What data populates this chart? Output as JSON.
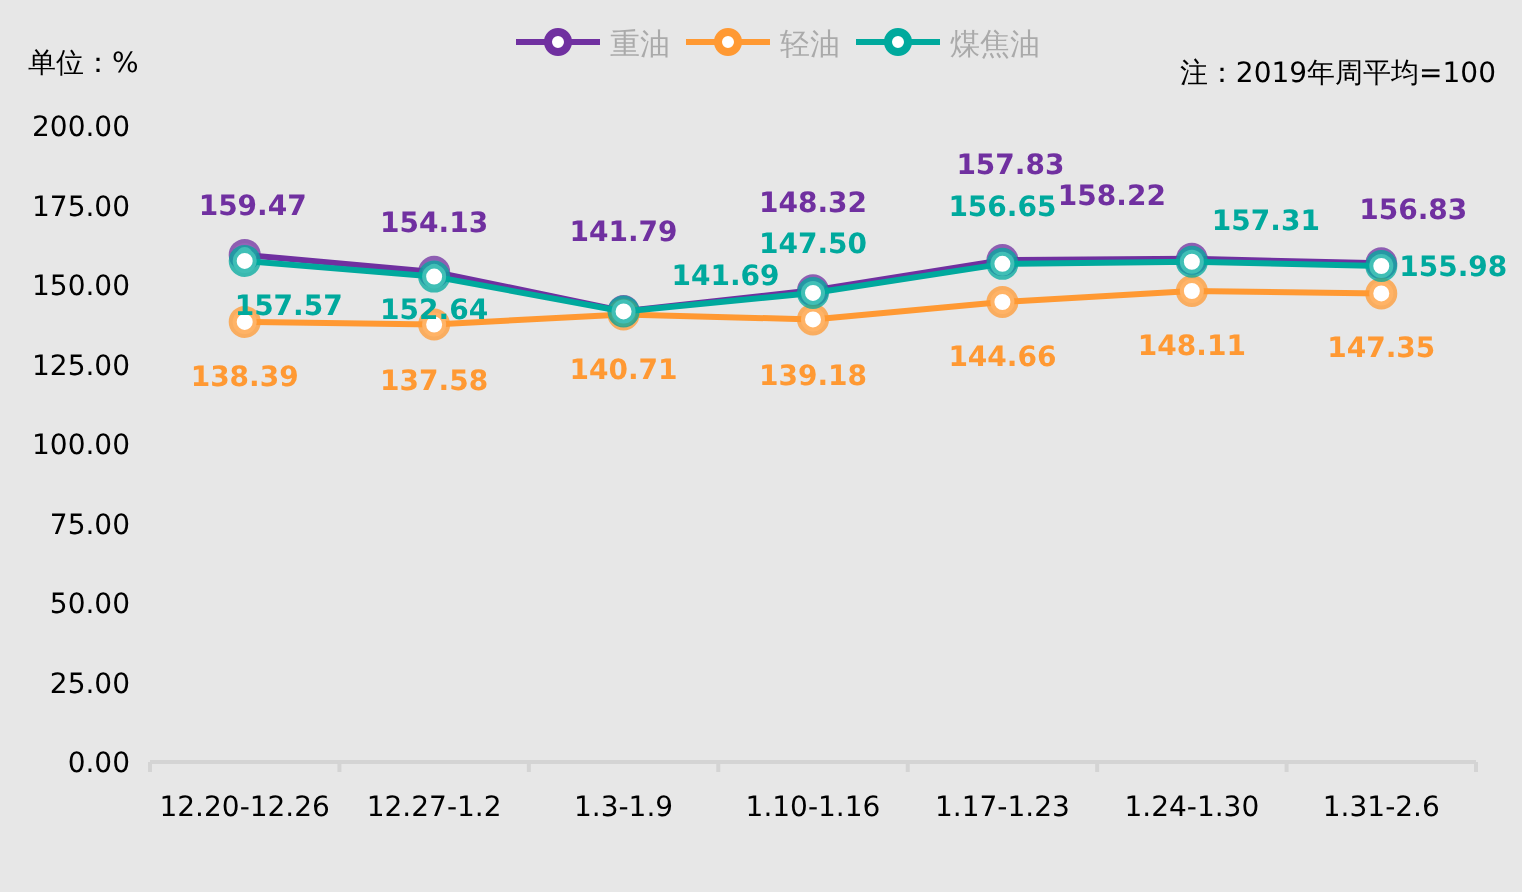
{
  "chart_data": {
    "type": "line",
    "categories": [
      "12.20-12.26",
      "12.27-1.2",
      "1.3-1.9",
      "1.10-1.16",
      "1.17-1.23",
      "1.24-1.30",
      "1.31-2.6"
    ],
    "series": [
      {
        "name": "重油",
        "color": "#7030a0",
        "values": [
          159.47,
          154.13,
          141.79,
          148.32,
          157.83,
          158.22,
          156.83
        ]
      },
      {
        "name": "轻油",
        "color": "#ff9933",
        "values": [
          138.39,
          137.58,
          140.71,
          139.18,
          144.66,
          148.11,
          147.35
        ]
      },
      {
        "name": "煤焦油",
        "color": "#00a99d",
        "values": [
          157.57,
          152.64,
          141.69,
          147.5,
          156.65,
          157.31,
          155.98
        ],
        "value_labels": [
          "157.57",
          "152.64",
          "141.69",
          "147.50",
          "156.65",
          "157.31",
          "155.98"
        ]
      }
    ],
    "ylim": [
      0,
      200
    ],
    "yticks": [
      {
        "value": 0,
        "label": "0.00"
      },
      {
        "value": 25,
        "label": "25.00"
      },
      {
        "value": 50,
        "label": "50.00"
      },
      {
        "value": 75,
        "label": "75.00"
      },
      {
        "value": 100,
        "label": "100.00"
      },
      {
        "value": 125,
        "label": "125.00"
      },
      {
        "value": 150,
        "label": "150.00"
      },
      {
        "value": 175,
        "label": "175.00"
      },
      {
        "value": 200,
        "label": "200.00"
      }
    ],
    "marker": "circle",
    "grid": false,
    "legend": "top",
    "data_labels": true,
    "annotations": [
      "单位：%",
      "注：2019年周平均=100"
    ]
  }
}
